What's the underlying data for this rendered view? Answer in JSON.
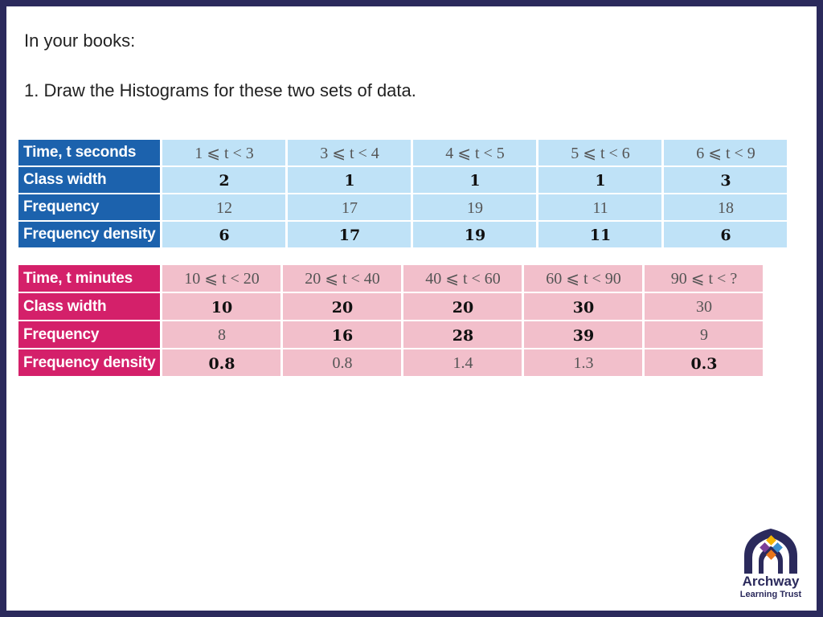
{
  "intro": "In your books:",
  "instruction": "1. Draw the Histograms for these two sets of data.",
  "table_seconds": {
    "header_label": "Time, t seconds",
    "intervals": [
      "1 ⩽ t < 3",
      "3 ⩽ t < 4",
      "4 ⩽ t < 5",
      "5 ⩽ t < 6",
      "6 ⩽ t < 9"
    ],
    "class_width_label": "Class width",
    "class_width": [
      "2",
      "1",
      "1",
      "1",
      "3"
    ],
    "frequency_label": "Frequency",
    "frequency": [
      "12",
      "17",
      "19",
      "11",
      "18"
    ],
    "density_label": "Frequency density",
    "density": [
      "6",
      "17",
      "19",
      "11",
      "6"
    ]
  },
  "table_minutes": {
    "header_label": "Time, t minutes",
    "intervals": [
      "10 ⩽ t < 20",
      "20 ⩽ t < 40",
      "40 ⩽ t < 60",
      "60 ⩽ t < 90",
      "90 ⩽ t < ?"
    ],
    "class_width_label": "Class width",
    "class_width": [
      "10",
      "20",
      "20",
      "30",
      "30"
    ],
    "frequency_label": "Frequency",
    "frequency": [
      "8",
      "16",
      "28",
      "39",
      "9"
    ],
    "density_label": "Frequency density",
    "density": [
      "0.8",
      "0.8",
      "1.4",
      "1.3",
      "0.3"
    ]
  },
  "logo": {
    "name": "Archway",
    "subtitle": "Learning Trust",
    "colors": {
      "navy": "#2b2a5c",
      "yellow": "#f5b400",
      "purple": "#7b3f98",
      "blue": "#3a8fd0",
      "orange": "#e8761b"
    }
  },
  "colors": {
    "frame": "#2b2a5c",
    "seconds_header": "#1c62ad",
    "seconds_cell": "#bfe2f7",
    "minutes_header": "#d4206a",
    "minutes_cell": "#f2bfcb"
  }
}
